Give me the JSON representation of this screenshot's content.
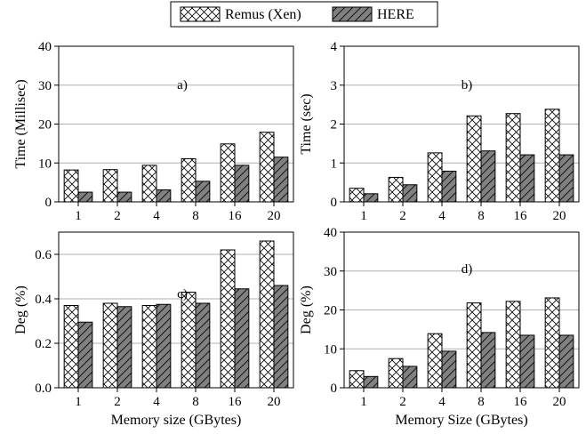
{
  "legend": {
    "series": [
      "Remus (Xen)",
      "HERE"
    ]
  },
  "colors": {
    "remus_fill": "#ffffff",
    "here_fill": "#808080",
    "grid": "#b0b0b0",
    "bar_edge": "#000000"
  },
  "chart_data": [
    {
      "type": "bar",
      "panel": "a)",
      "categories": [
        "1",
        "2",
        "4",
        "8",
        "16",
        "20"
      ],
      "series": [
        {
          "name": "Remus (Xen)",
          "values": [
            8.2,
            8.3,
            9.4,
            11.1,
            14.9,
            17.9
          ]
        },
        {
          "name": "HERE",
          "values": [
            2.5,
            2.5,
            3.1,
            5.3,
            9.4,
            11.5
          ]
        }
      ],
      "xlabel": "",
      "ylabel": "Time (Millisec)",
      "ylim": [
        0,
        40
      ],
      "yticks": [
        "0",
        "10",
        "20",
        "30",
        "40"
      ],
      "grid": true
    },
    {
      "type": "bar",
      "panel": "b)",
      "categories": [
        "1",
        "2",
        "4",
        "8",
        "16",
        "20"
      ],
      "series": [
        {
          "name": "Remus (Xen)",
          "values": [
            0.35,
            0.63,
            1.26,
            2.21,
            2.27,
            2.38
          ]
        },
        {
          "name": "HERE",
          "values": [
            0.21,
            0.44,
            0.79,
            1.31,
            1.21,
            1.21
          ]
        }
      ],
      "xlabel": "",
      "ylabel": "Time (sec)",
      "ylim": [
        0,
        4
      ],
      "yticks": [
        "0",
        "1",
        "2",
        "3",
        "4"
      ],
      "grid": true
    },
    {
      "type": "bar",
      "panel": "c)",
      "categories": [
        "1",
        "2",
        "4",
        "8",
        "16",
        "20"
      ],
      "series": [
        {
          "name": "Remus (Xen)",
          "values": [
            0.37,
            0.38,
            0.37,
            0.43,
            0.62,
            0.66
          ]
        },
        {
          "name": "HERE",
          "values": [
            0.295,
            0.365,
            0.375,
            0.38,
            0.445,
            0.46
          ]
        }
      ],
      "xlabel": "Memory size (GBytes)",
      "ylabel": "Deg (%)",
      "ylim": [
        0,
        0.7
      ],
      "yticks": [
        "0.0",
        "0.2",
        "0.4",
        "0.6"
      ],
      "ytick_values": [
        0,
        0.2,
        0.4,
        0.6
      ],
      "grid": true
    },
    {
      "type": "bar",
      "panel": "d)",
      "categories": [
        "1",
        "2",
        "4",
        "8",
        "16",
        "20"
      ],
      "series": [
        {
          "name": "Remus (Xen)",
          "values": [
            4.4,
            7.5,
            13.9,
            21.8,
            22.2,
            23.1
          ]
        },
        {
          "name": "HERE",
          "values": [
            2.9,
            5.5,
            9.4,
            14.2,
            13.5,
            13.5
          ]
        }
      ],
      "xlabel": "Memory Size (GBytes)",
      "ylabel": "Deg (%)",
      "ylim": [
        0,
        40
      ],
      "yticks": [
        "0",
        "10",
        "20",
        "30",
        "40"
      ],
      "grid": true
    }
  ]
}
